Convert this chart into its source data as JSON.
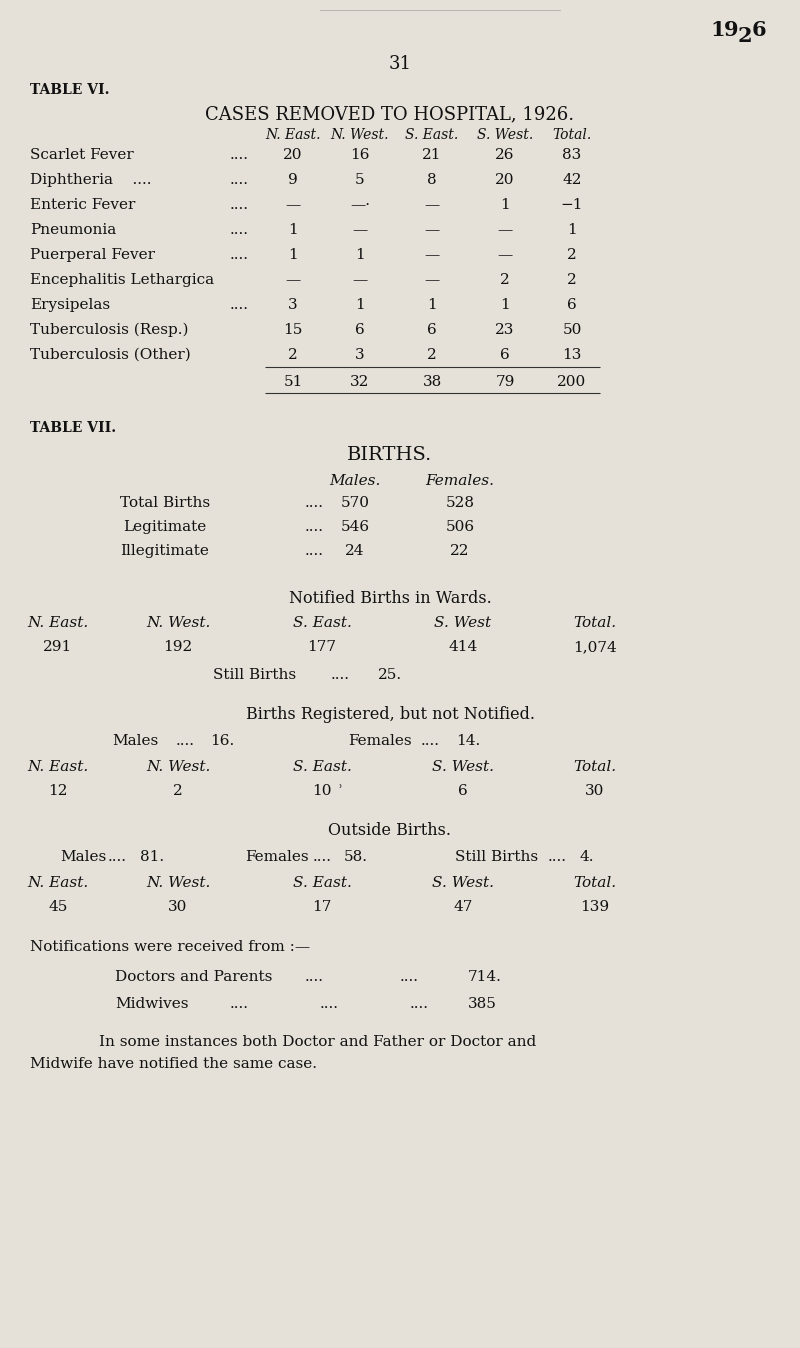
{
  "bg_color": "#e5e1d8",
  "text_color": "#1a1a1a",
  "page_number": "31",
  "table6_label": "TABLE VI.",
  "table6_title": "CASES REMOVED TO HOSPITAL, 1926.",
  "table6_col_headers": [
    "N. East.",
    "N. West.",
    "S. East.",
    "S. West.",
    "Total."
  ],
  "row_labels": [
    "Scarlet Fever",
    "Diphtheria    ....",
    "Enteric Fever",
    "Pneumonia",
    "Puerperal Fever",
    "Encephalitis Lethargica",
    "Erysipelas",
    "Tuberculosis (Resp.)",
    "Tuberculosis (Other)"
  ],
  "row_dots": [
    "....",
    "....",
    "....",
    "....",
    "....",
    "",
    "....",
    "",
    ""
  ],
  "row_data": [
    [
      "20",
      "16",
      "21",
      "26",
      "83"
    ],
    [
      "9",
      "5",
      "8",
      "20",
      "42"
    ],
    [
      "—",
      "—·",
      "—",
      "1",
      "−1"
    ],
    [
      "1",
      "—",
      "—",
      "—",
      "1"
    ],
    [
      "1",
      "1",
      "—",
      "—",
      "2"
    ],
    [
      "—",
      "—",
      "—",
      "2",
      "2"
    ],
    [
      "3",
      "1",
      "1",
      "1",
      "6"
    ],
    [
      "15",
      "6",
      "6",
      "23",
      "50"
    ],
    [
      "2",
      "3",
      "2",
      "6",
      "13"
    ]
  ],
  "table6_totals": [
    "51",
    "32",
    "38",
    "79",
    "200"
  ],
  "table7_label": "TABLE VII.",
  "births_title": "BIRTHS.",
  "births_rows": [
    [
      "Total Births",
      "570",
      "528"
    ],
    [
      "Legitimate",
      "546",
      "506"
    ],
    [
      "Illegitimate",
      "24",
      "22"
    ]
  ],
  "notified_births_title": "Notified Births in Wards.",
  "notified_col_headers": [
    "N. East.",
    "N. West.",
    "S. East.",
    "S. West",
    "Total."
  ],
  "notified_values": [
    "291",
    "192",
    "177",
    "414",
    "1,074"
  ],
  "births_registered_title": "Births Registered, but not Notified.",
  "births_reg_values": [
    "12",
    "2",
    "10",
    "6",
    "30"
  ],
  "outside_births_title": "Outside Births.",
  "outside_values": [
    "45",
    "30",
    "17",
    "47",
    "139"
  ],
  "notifications_text": "Notifications were received from :—",
  "footnote_line1": "        In some instances both Doctor and Father or Doctor and",
  "footnote_line2": "Midwife have notified the same case."
}
